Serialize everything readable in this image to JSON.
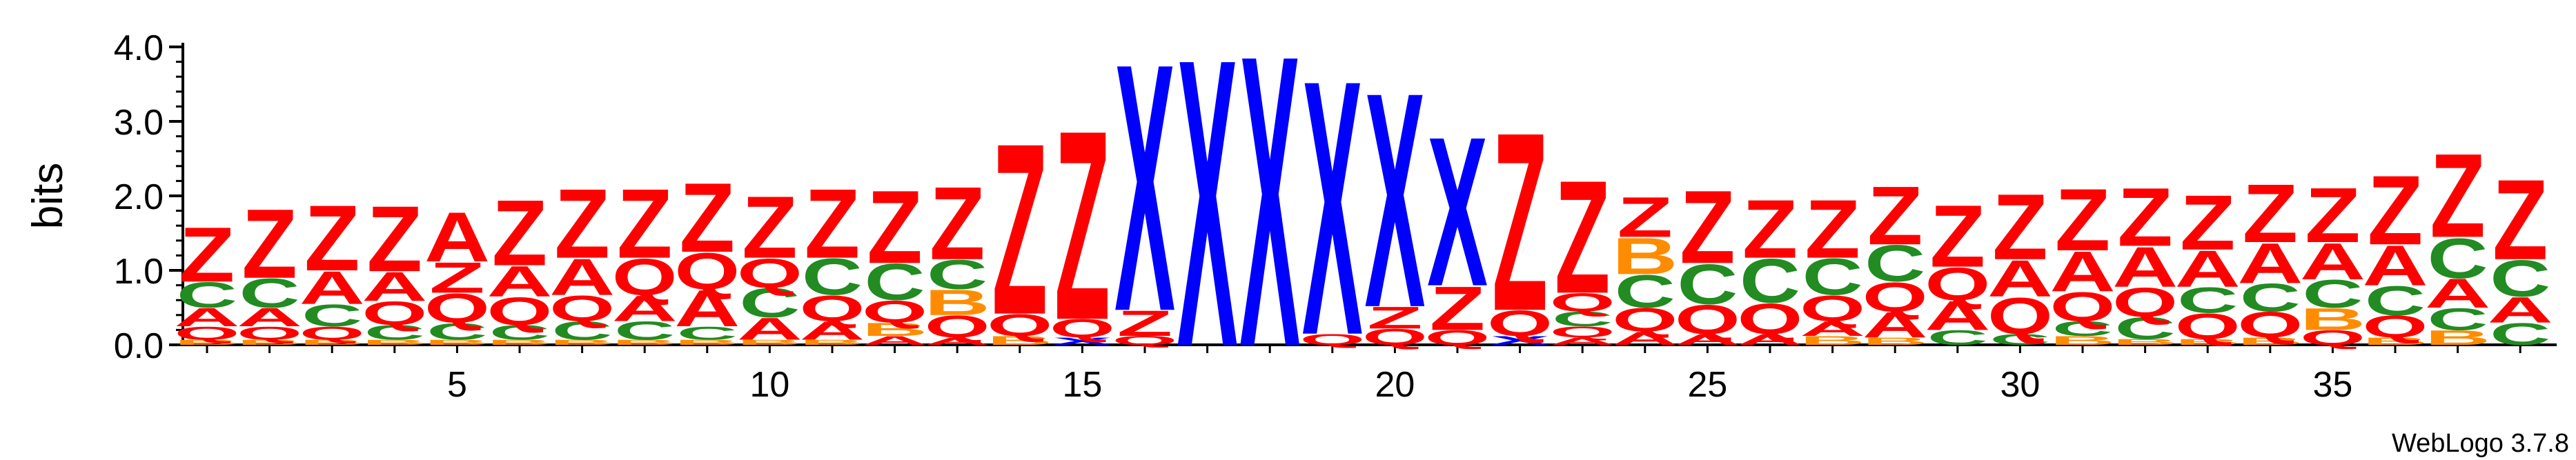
{
  "credit": "WebLogo 3.7.8",
  "colors": {
    "Z": "#ff0000",
    "C": "#228b22",
    "A": "#ff0000",
    "Q": "#ff0000",
    "X": "#0000ff",
    "B": "#ff8c00",
    "other": "#800080"
  },
  "chart_data": {
    "type": "sequence-logo",
    "title": "",
    "xlabel": "",
    "ylabel": "bits",
    "ylim": [
      0,
      4.0
    ],
    "yticks": [
      "0.0",
      "1.0",
      "2.0",
      "3.0",
      "4.0"
    ],
    "xticks": [
      "5",
      "10",
      "15",
      "20",
      "25",
      "30",
      "35"
    ],
    "xtick_values": [
      5,
      10,
      15,
      20,
      25,
      30,
      35
    ],
    "x_range": [
      1,
      38
    ],
    "positions": [
      {
        "pos": 1,
        "stack": [
          [
            "B",
            0.07
          ],
          [
            "Q",
            0.18
          ],
          [
            "A",
            0.25
          ],
          [
            "C",
            0.35
          ],
          [
            "Z",
            0.75
          ]
        ]
      },
      {
        "pos": 2,
        "stack": [
          [
            "B",
            0.07
          ],
          [
            "Q",
            0.18
          ],
          [
            "A",
            0.25
          ],
          [
            "C",
            0.4
          ],
          [
            "Z",
            0.95
          ]
        ]
      },
      {
        "pos": 3,
        "stack": [
          [
            "B",
            0.07
          ],
          [
            "Q",
            0.18
          ],
          [
            "C",
            0.3
          ],
          [
            "A",
            0.45
          ],
          [
            "Z",
            0.9
          ]
        ]
      },
      {
        "pos": 4,
        "stack": [
          [
            "B",
            0.07
          ],
          [
            "C",
            0.2
          ],
          [
            "Q",
            0.32
          ],
          [
            "A",
            0.4
          ],
          [
            "Z",
            0.9
          ]
        ]
      },
      {
        "pos": 5,
        "stack": [
          [
            "B",
            0.07
          ],
          [
            "C",
            0.23
          ],
          [
            "Q",
            0.4
          ],
          [
            "Z",
            0.42
          ],
          [
            "A",
            0.68
          ]
        ]
      },
      {
        "pos": 6,
        "stack": [
          [
            "B",
            0.07
          ],
          [
            "C",
            0.2
          ],
          [
            "Q",
            0.38
          ],
          [
            "A",
            0.42
          ],
          [
            "Z",
            0.9
          ]
        ]
      },
      {
        "pos": 7,
        "stack": [
          [
            "B",
            0.07
          ],
          [
            "C",
            0.25
          ],
          [
            "Q",
            0.35
          ],
          [
            "A",
            0.5
          ],
          [
            "Z",
            0.95
          ]
        ]
      },
      {
        "pos": 8,
        "stack": [
          [
            "B",
            0.07
          ],
          [
            "C",
            0.25
          ],
          [
            "A",
            0.35
          ],
          [
            "Q",
            0.5
          ],
          [
            "Z",
            0.95
          ]
        ]
      },
      {
        "pos": 9,
        "stack": [
          [
            "B",
            0.07
          ],
          [
            "C",
            0.18
          ],
          [
            "A",
            0.5
          ],
          [
            "Q",
            0.5
          ],
          [
            "Z",
            0.95
          ]
        ]
      },
      {
        "pos": 10,
        "stack": [
          [
            "B",
            0.07
          ],
          [
            "A",
            0.3
          ],
          [
            "C",
            0.4
          ],
          [
            "Q",
            0.4
          ],
          [
            "Z",
            0.85
          ]
        ]
      },
      {
        "pos": 11,
        "stack": [
          [
            "B",
            0.07
          ],
          [
            "A",
            0.25
          ],
          [
            "Q",
            0.35
          ],
          [
            "C",
            0.5
          ],
          [
            "Z",
            0.95
          ]
        ]
      },
      {
        "pos": 12,
        "stack": [
          [
            "A",
            0.12
          ],
          [
            "B",
            0.18
          ],
          [
            "Q",
            0.3
          ],
          [
            "C",
            0.5
          ],
          [
            "Z",
            1.0
          ]
        ]
      },
      {
        "pos": 13,
        "stack": [
          [
            "A",
            0.1
          ],
          [
            "Q",
            0.3
          ],
          [
            "B",
            0.35
          ],
          [
            "C",
            0.4
          ],
          [
            "Z",
            1.0
          ]
        ]
      },
      {
        "pos": 14,
        "stack": [
          [
            "B",
            0.12
          ],
          [
            "Q",
            0.3
          ],
          [
            "Z",
            2.35
          ]
        ]
      },
      {
        "pos": 15,
        "stack": [
          [
            "X",
            0.1
          ],
          [
            "Q",
            0.25
          ],
          [
            "Z",
            2.6
          ]
        ]
      },
      {
        "pos": 16,
        "stack": [
          [
            "Q",
            0.12
          ],
          [
            "Z",
            0.35
          ],
          [
            "X",
            3.4
          ]
        ]
      },
      {
        "pos": 17,
        "stack": [
          [
            "X",
            3.95
          ]
        ]
      },
      {
        "pos": 18,
        "stack": [
          [
            "X",
            4.0
          ]
        ]
      },
      {
        "pos": 19,
        "stack": [
          [
            "Q",
            0.15
          ],
          [
            "X",
            3.5
          ]
        ]
      },
      {
        "pos": 20,
        "stack": [
          [
            "Q",
            0.22
          ],
          [
            "Z",
            0.3
          ],
          [
            "X",
            2.95
          ]
        ]
      },
      {
        "pos": 21,
        "stack": [
          [
            "Q",
            0.2
          ],
          [
            "Z",
            0.6
          ],
          [
            "X",
            2.05
          ]
        ]
      },
      {
        "pos": 22,
        "stack": [
          [
            "X",
            0.12
          ],
          [
            "Q",
            0.35
          ],
          [
            "Z",
            2.45
          ]
        ]
      },
      {
        "pos": 23,
        "stack": [
          [
            "A",
            0.1
          ],
          [
            "Q",
            0.15
          ],
          [
            "C",
            0.2
          ],
          [
            "Q",
            0.25
          ],
          [
            "Z",
            1.55
          ]
        ]
      },
      {
        "pos": 24,
        "stack": [
          [
            "A",
            0.18
          ],
          [
            "Q",
            0.32
          ],
          [
            "C",
            0.45
          ],
          [
            "B",
            0.5
          ],
          [
            "Z",
            0.55
          ]
        ]
      },
      {
        "pos": 25,
        "stack": [
          [
            "A",
            0.15
          ],
          [
            "Q",
            0.4
          ],
          [
            "C",
            0.55
          ],
          [
            "Z",
            1.0
          ]
        ]
      },
      {
        "pos": 26,
        "stack": [
          [
            "A",
            0.15
          ],
          [
            "Q",
            0.42
          ],
          [
            "C",
            0.6
          ],
          [
            "Z",
            0.8
          ]
        ]
      },
      {
        "pos": 27,
        "stack": [
          [
            "B",
            0.12
          ],
          [
            "A",
            0.2
          ],
          [
            "Q",
            0.35
          ],
          [
            "C",
            0.5
          ],
          [
            "Z",
            0.8
          ]
        ]
      },
      {
        "pos": 28,
        "stack": [
          [
            "B",
            0.1
          ],
          [
            "A",
            0.35
          ],
          [
            "Q",
            0.4
          ],
          [
            "C",
            0.5
          ],
          [
            "Z",
            0.8
          ]
        ]
      },
      {
        "pos": 29,
        "stack": [
          [
            "C",
            0.2
          ],
          [
            "A",
            0.4
          ],
          [
            "Q",
            0.45
          ],
          [
            "Z",
            0.85
          ]
        ]
      },
      {
        "pos": 30,
        "stack": [
          [
            "C",
            0.15
          ],
          [
            "Q",
            0.5
          ],
          [
            "A",
            0.5
          ],
          [
            "Z",
            0.9
          ]
        ]
      },
      {
        "pos": 31,
        "stack": [
          [
            "B",
            0.12
          ],
          [
            "C",
            0.2
          ],
          [
            "Q",
            0.4
          ],
          [
            "A",
            0.55
          ],
          [
            "Z",
            0.85
          ]
        ]
      },
      {
        "pos": 32,
        "stack": [
          [
            "B",
            0.08
          ],
          [
            "C",
            0.3
          ],
          [
            "Q",
            0.4
          ],
          [
            "A",
            0.55
          ],
          [
            "Z",
            0.8
          ]
        ]
      },
      {
        "pos": 33,
        "stack": [
          [
            "B",
            0.08
          ],
          [
            "Q",
            0.35
          ],
          [
            "C",
            0.35
          ],
          [
            "A",
            0.5
          ],
          [
            "Z",
            0.75
          ]
        ]
      },
      {
        "pos": 34,
        "stack": [
          [
            "B",
            0.1
          ],
          [
            "Q",
            0.35
          ],
          [
            "C",
            0.38
          ],
          [
            "A",
            0.55
          ],
          [
            "Z",
            0.8
          ]
        ]
      },
      {
        "pos": 35,
        "stack": [
          [
            "Q",
            0.2
          ],
          [
            "B",
            0.3
          ],
          [
            "C",
            0.38
          ],
          [
            "A",
            0.5
          ],
          [
            "Z",
            0.75
          ]
        ]
      },
      {
        "pos": 36,
        "stack": [
          [
            "B",
            0.1
          ],
          [
            "Q",
            0.3
          ],
          [
            "C",
            0.4
          ],
          [
            "A",
            0.55
          ],
          [
            "Z",
            0.95
          ]
        ]
      },
      {
        "pos": 37,
        "stack": [
          [
            "B",
            0.2
          ],
          [
            "C",
            0.3
          ],
          [
            "A",
            0.4
          ],
          [
            "C",
            0.55
          ],
          [
            "Z",
            1.15
          ]
        ]
      },
      {
        "pos": 38,
        "stack": [
          [
            "C",
            0.3
          ],
          [
            "A",
            0.35
          ],
          [
            "C",
            0.5
          ],
          [
            "Z",
            1.1
          ]
        ]
      }
    ]
  }
}
